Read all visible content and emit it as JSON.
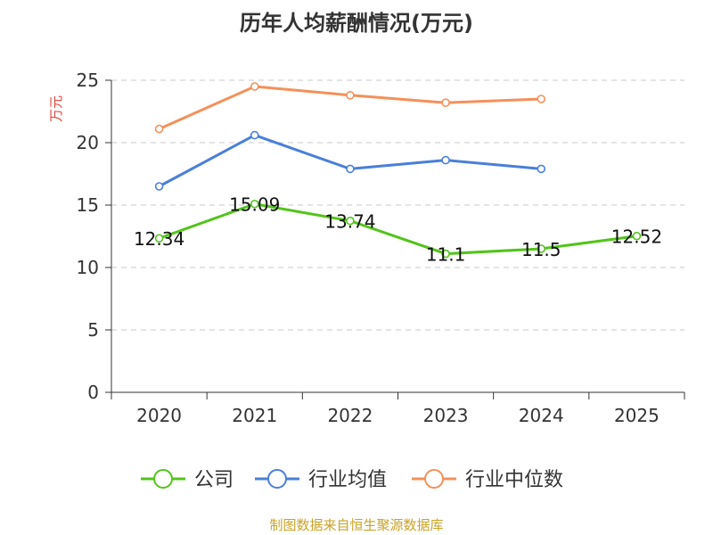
{
  "chart_data": {
    "type": "line",
    "title": "历年人均薪酬情况(万元)",
    "ylabel": "万元",
    "ylabel_color": "#e8413d",
    "categories": [
      "2020",
      "2021",
      "2022",
      "2023",
      "2024",
      "2025"
    ],
    "ylim": [
      0,
      25
    ],
    "yticks": [
      0,
      5,
      10,
      15,
      20,
      25
    ],
    "grid": true,
    "legend_position": "bottom",
    "series": [
      {
        "name": "公司",
        "color": "#52c41a",
        "values": [
          12.34,
          15.09,
          13.74,
          11.1,
          11.5,
          12.52
        ],
        "labels": [
          "12.34",
          "15.09",
          "13.74",
          "11.1",
          "11.5",
          "12.52"
        ]
      },
      {
        "name": "行业均值",
        "color": "#4a7fd9",
        "values": [
          16.5,
          20.6,
          17.9,
          18.6,
          17.9,
          null
        ]
      },
      {
        "name": "行业中位数",
        "color": "#f5905a",
        "values": [
          21.1,
          24.5,
          23.8,
          23.2,
          23.5,
          null
        ]
      }
    ]
  },
  "source": "制图数据来自恒生聚源数据库"
}
